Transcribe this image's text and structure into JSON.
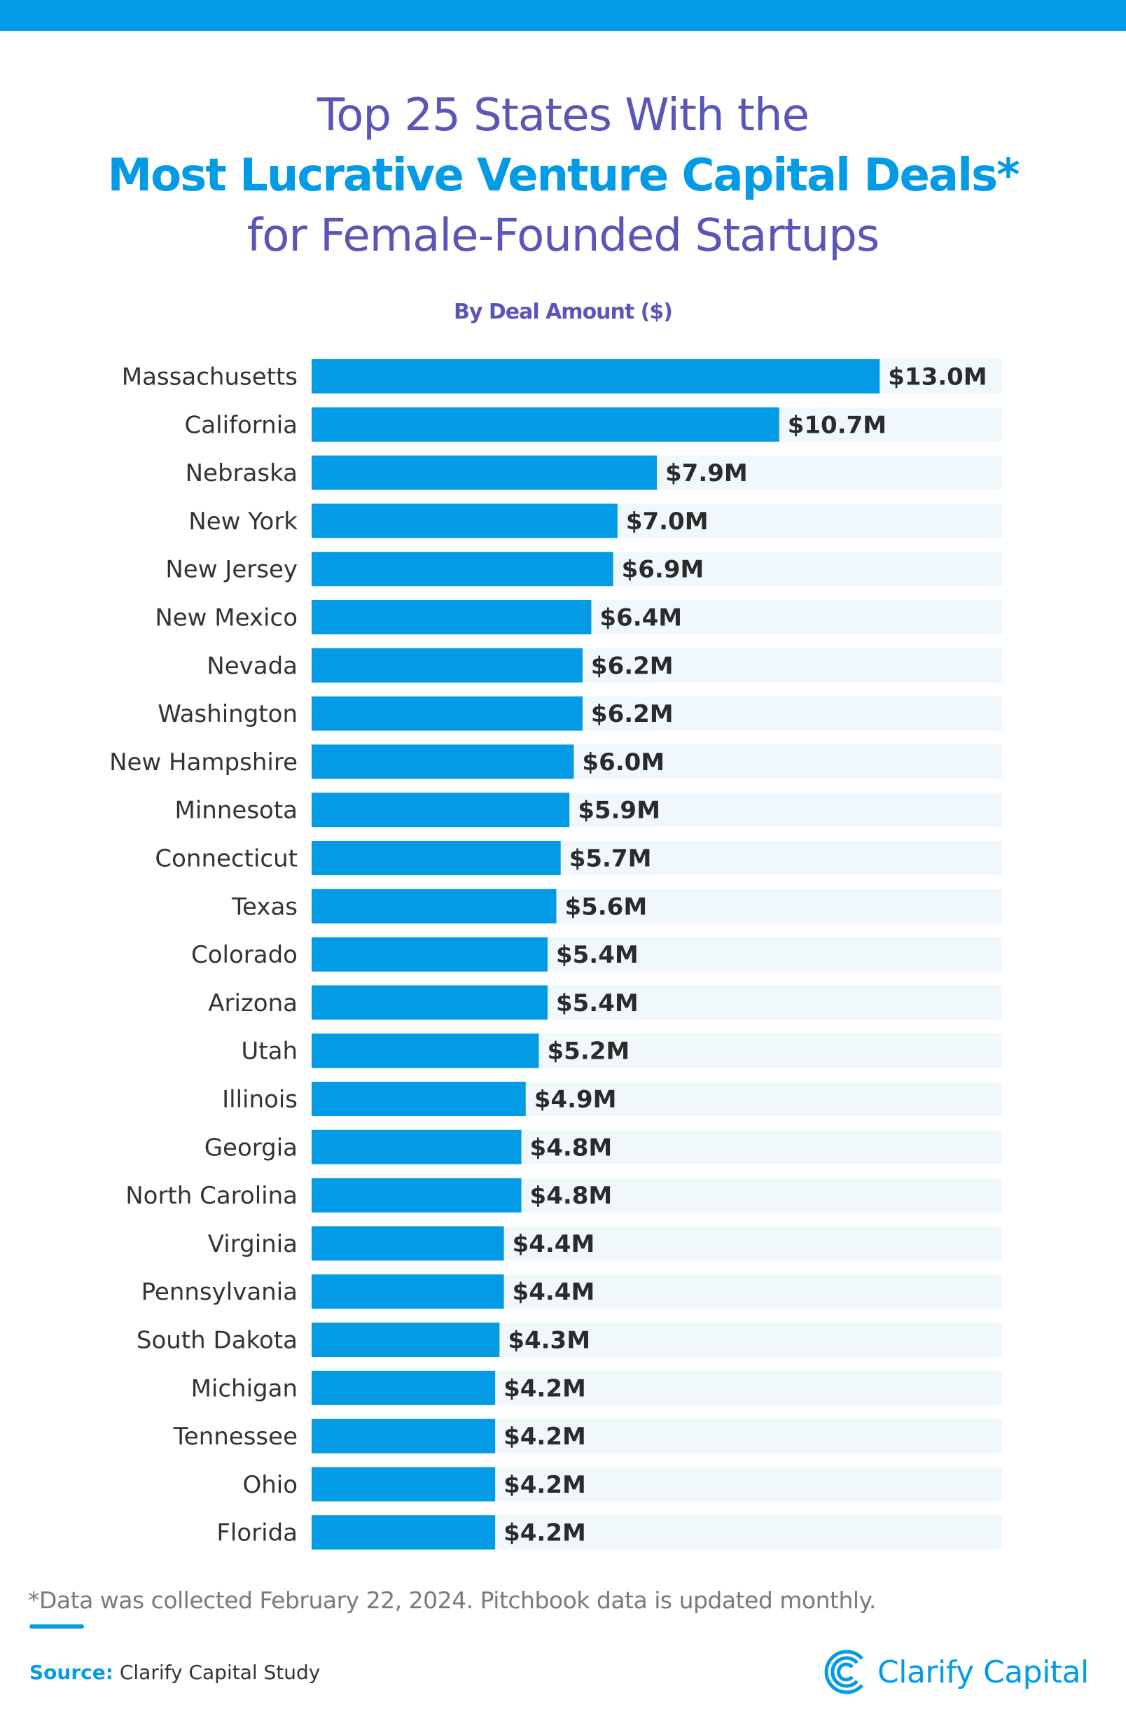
{
  "title": {
    "line1": "Top 25 States With the",
    "line2": "Most Lucrative Venture Capital Deals*",
    "line3": "for Female-Founded Startups"
  },
  "subtitle": "By Deal Amount ($)",
  "colors": {
    "bar": "#039be5",
    "track": "#f1f8fc",
    "title": "#5a55b8",
    "accent": "#039be5"
  },
  "chart_data": {
    "type": "bar",
    "orientation": "horizontal",
    "title": "Top 25 States With the Most Lucrative Venture Capital Deals* for Female-Founded Startups",
    "subtitle": "By Deal Amount ($)",
    "unit": "$M",
    "xlim": [
      0,
      15.8
    ],
    "grid": false,
    "categories": [
      "Massachusetts",
      "California",
      "Nebraska",
      "New York",
      "New Jersey",
      "New Mexico",
      "Nevada",
      "Washington",
      "New Hampshire",
      "Minnesota",
      "Connecticut",
      "Texas",
      "Colorado",
      "Arizona",
      "Utah",
      "Illinois",
      "Georgia",
      "North Carolina",
      "Virginia",
      "Pennsylvania",
      "South Dakota",
      "Michigan",
      "Tennessee",
      "Ohio",
      "Florida"
    ],
    "values": [
      13.0,
      10.7,
      7.9,
      7.0,
      6.9,
      6.4,
      6.2,
      6.2,
      6.0,
      5.9,
      5.7,
      5.6,
      5.4,
      5.4,
      5.2,
      4.9,
      4.8,
      4.8,
      4.4,
      4.4,
      4.3,
      4.2,
      4.2,
      4.2,
      4.2
    ],
    "labels": [
      "$13.0M",
      "$10.7M",
      "$7.9M",
      "$7.0M",
      "$6.9M",
      "$6.4M",
      "$6.2M",
      "$6.2M",
      "$6.0M",
      "$5.9M",
      "$5.7M",
      "$5.6M",
      "$5.4M",
      "$5.4M",
      "$5.2M",
      "$4.9M",
      "$4.8M",
      "$4.8M",
      "$4.4M",
      "$4.4M",
      "$4.3M",
      "$4.2M",
      "$4.2M",
      "$4.2M",
      "$4.2M"
    ]
  },
  "footnote": "*Data was collected February 22, 2024. Pitchbook data is updated monthly.",
  "source": {
    "label": "Source:",
    "text": "Clarify Capital Study"
  },
  "logo": {
    "text": "Clarify Capital",
    "icon": "clarify-capital-logo-icon"
  }
}
